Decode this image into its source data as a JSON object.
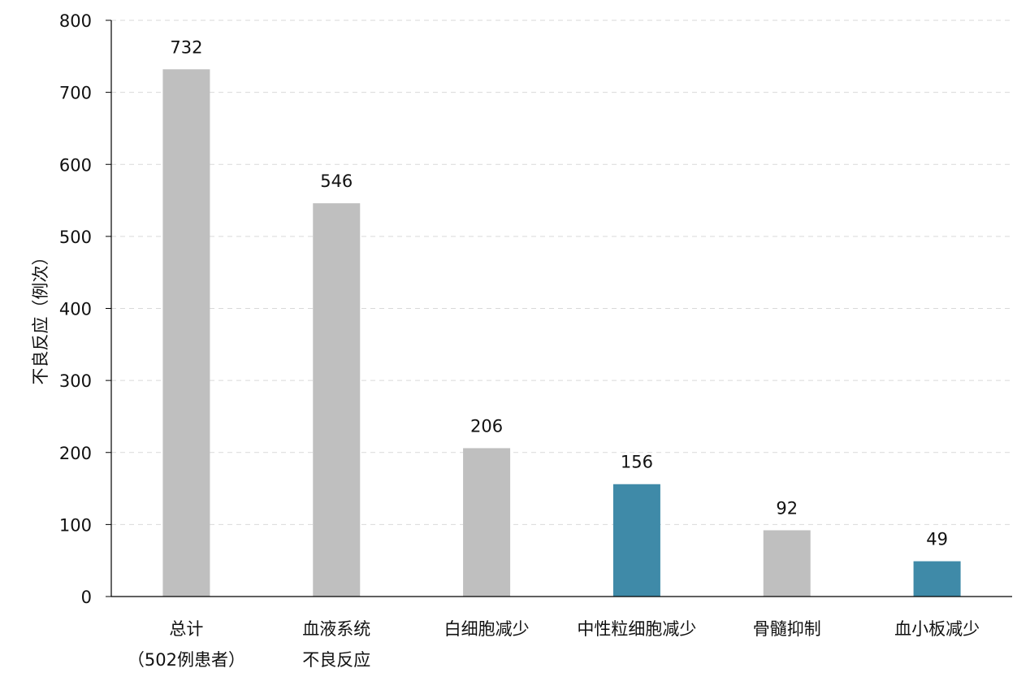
{
  "chart_data": {
    "type": "bar",
    "title": "",
    "xlabel": "",
    "ylabel": "不良反应（例次）",
    "ylim": [
      0,
      800
    ],
    "yticks": [
      0,
      100,
      200,
      300,
      400,
      500,
      600,
      700,
      800
    ],
    "grid": true,
    "grid_style": "dashed-horizontal",
    "legend": "none",
    "categories": [
      [
        "总计",
        "（502例患者）"
      ],
      [
        "血液系统",
        "不良反应"
      ],
      [
        "白细胞减少"
      ],
      [
        "中性粒细胞减少"
      ],
      [
        "骨髓抑制"
      ],
      [
        "血小板减少"
      ]
    ],
    "values": [
      732,
      546,
      206,
      156,
      92,
      49
    ],
    "bar_colors": [
      "#bfbfbf",
      "#bfbfbf",
      "#bfbfbf",
      "#3f8aa8",
      "#bfbfbf",
      "#3f8aa8"
    ],
    "colors": {
      "default_bar": "#bfbfbf",
      "highlight_bar": "#3f8aa8",
      "grid": "#d9d9d9",
      "axis": "#000000"
    }
  }
}
